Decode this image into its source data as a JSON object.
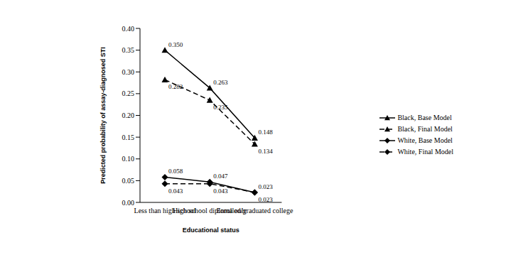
{
  "chart_data": {
    "type": "line",
    "x_label": "Educational status",
    "y_label": "Predicted probability of assay-diagnosed STI",
    "categories": [
      "Less than high school",
      "High school diploma only",
      "Enrolled/graduated college"
    ],
    "ylim": [
      0,
      0.4
    ],
    "yticks": [
      {
        "value": 0,
        "label": "0.00"
      },
      {
        "value": 0.05,
        "label": "0.05"
      },
      {
        "value": 0.1,
        "label": "0.10"
      },
      {
        "value": 0.15,
        "label": "0.15"
      },
      {
        "value": 0.2,
        "label": "0.20"
      },
      {
        "value": 0.25,
        "label": "0.25"
      },
      {
        "value": 0.3,
        "label": "0.30"
      },
      {
        "value": 0.35,
        "label": "0.35"
      },
      {
        "value": 0.4,
        "label": "0.40"
      }
    ],
    "grid": false,
    "legend": "right",
    "data_labels": true,
    "series": [
      {
        "name": "Black, Base Model",
        "color": "#000000",
        "marker": "triangle",
        "line_style": "solid",
        "values": [
          0.35,
          0.263,
          0.148
        ],
        "value_labels": [
          "0.350",
          "0.263",
          "0.148"
        ]
      },
      {
        "name": "Black, Final Model",
        "color": "#000000",
        "marker": "triangle",
        "line_style": "dashed",
        "values": [
          0.282,
          0.235,
          0.134
        ],
        "value_labels": [
          "0.282",
          "0.235",
          "0.134"
        ]
      },
      {
        "name": "White, Base Model",
        "color": "#000000",
        "marker": "diamond",
        "line_style": "solid",
        "values": [
          0.058,
          0.047,
          0.023
        ],
        "value_labels": [
          "0.058",
          "0.047",
          "0.023"
        ]
      },
      {
        "name": "White, Final Model",
        "color": "#000000",
        "marker": "diamond",
        "line_style": "dashed",
        "values": [
          0.043,
          0.043,
          0.023
        ],
        "value_labels": [
          "0.043",
          "0.043",
          "0.023"
        ]
      }
    ]
  }
}
